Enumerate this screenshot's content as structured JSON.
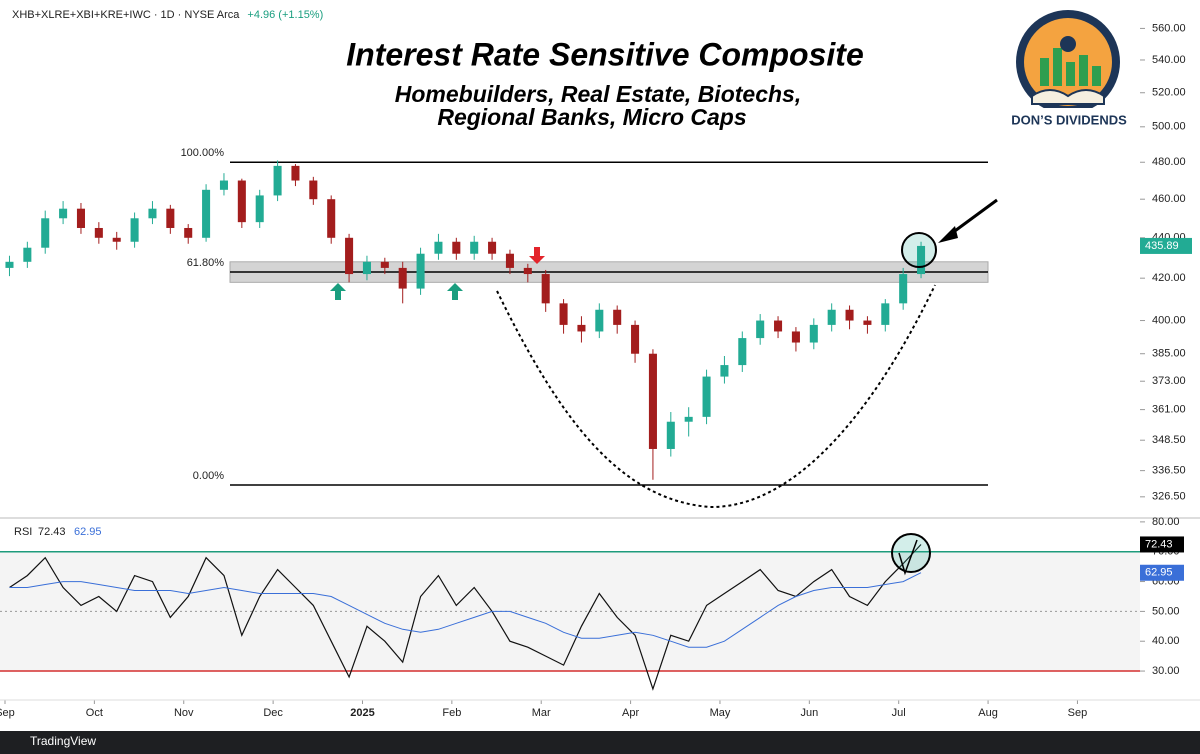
{
  "chart_data": [
    {
      "type": "candlestick",
      "symbol": "XHB+XLRE+XBI+KRE+IWC · 1D · NYSE Arca",
      "change": "+4.96 (+1.15%)",
      "title": "Interest Rate Sensitive Composite",
      "subtitle": [
        "Homebuilders, Real Estate, Biotechs,",
        "Regional Banks, Micro Caps"
      ],
      "logo": "DON’S DIVIDENDS",
      "x": [
        0.05,
        0.25,
        0.45,
        0.65,
        0.85,
        1.05,
        1.25,
        1.45,
        1.65,
        1.85,
        2.05,
        2.25,
        2.45,
        2.65,
        2.85,
        3.05,
        3.25,
        3.45,
        3.65,
        3.85,
        4.05,
        4.25,
        4.45,
        4.65,
        4.85,
        5.05,
        5.25,
        5.45,
        5.65,
        5.85,
        6.05,
        6.25,
        6.45,
        6.65,
        6.85,
        7.05,
        7.25,
        7.45,
        7.65,
        7.85,
        8.05,
        8.25,
        8.45,
        8.65,
        8.85,
        9.05,
        9.25,
        9.45,
        9.65,
        9.85,
        10.05,
        10.25
      ],
      "open": [
        425,
        428,
        435,
        450,
        455,
        445,
        440,
        438,
        450,
        455,
        445,
        440,
        465,
        470,
        448,
        462,
        478,
        470,
        460,
        440,
        422,
        428,
        425,
        415,
        432,
        438,
        432,
        438,
        432,
        425,
        422,
        408,
        398,
        395,
        405,
        398,
        385,
        345,
        356,
        358,
        375,
        380,
        392,
        400,
        395,
        390,
        398,
        405,
        400,
        398,
        408,
        422
      ],
      "high": [
        431,
        438,
        454,
        459,
        458,
        448,
        443,
        453,
        459,
        457,
        447,
        468,
        474,
        471,
        465,
        481,
        479,
        472,
        462,
        442,
        431,
        430,
        428,
        435,
        442,
        440,
        441,
        440,
        434,
        427,
        424,
        410,
        402,
        408,
        407,
        400,
        387,
        360,
        362,
        378,
        384,
        395,
        403,
        402,
        397,
        401,
        408,
        407,
        402,
        410,
        425,
        438
      ],
      "low": [
        421,
        425,
        432,
        447,
        442,
        437,
        434,
        435,
        447,
        442,
        437,
        438,
        462,
        445,
        445,
        459,
        467,
        457,
        437,
        418,
        419,
        422,
        408,
        412,
        429,
        429,
        429,
        429,
        422,
        418,
        404,
        394,
        390,
        392,
        394,
        381,
        333,
        342,
        350,
        355,
        372,
        377,
        389,
        392,
        386,
        387,
        395,
        396,
        394,
        395,
        405,
        420
      ],
      "close": [
        428,
        435,
        450,
        455,
        445,
        440,
        438,
        450,
        455,
        445,
        440,
        465,
        470,
        448,
        462,
        478,
        470,
        460,
        440,
        422,
        428,
        425,
        415,
        432,
        438,
        432,
        438,
        432,
        425,
        422,
        408,
        398,
        395,
        405,
        398,
        385,
        345,
        356,
        358,
        375,
        380,
        392,
        400,
        395,
        390,
        398,
        405,
        400,
        398,
        408,
        422,
        435.89
      ],
      "up_color": "#22ab94",
      "down_color": "#a31d1d",
      "log_scale": true,
      "xlim": [
        -0.056,
        12.7
      ],
      "ylim": [
        319,
        572
      ],
      "yticks": [
        {
          "value": 326.5,
          "label": "326.50"
        },
        {
          "value": 336.5,
          "label": "336.50"
        },
        {
          "value": 348.5,
          "label": "348.50"
        },
        {
          "value": 361,
          "label": "361.00"
        },
        {
          "value": 373,
          "label": "373.00"
        },
        {
          "value": 385,
          "label": "385.00"
        },
        {
          "value": 400,
          "label": "400.00"
        },
        {
          "value": 420,
          "label": "420.00"
        },
        {
          "value": 440,
          "label": "440.00"
        },
        {
          "value": 460,
          "label": "460.00"
        },
        {
          "value": 480,
          "label": "480.00"
        },
        {
          "value": 500,
          "label": "500.00"
        },
        {
          "value": 520,
          "label": "520.00"
        },
        {
          "value": 540,
          "label": "540.00"
        },
        {
          "value": 560,
          "label": "560.00"
        }
      ],
      "fib_levels": [
        {
          "value": 480,
          "label": "100.00%"
        },
        {
          "value": 423,
          "label": "61.80%"
        },
        {
          "value": 331,
          "label": "0.00%"
        }
      ],
      "zone": [
        418,
        428
      ]
    },
    {
      "type": "line",
      "x": [
        0.05,
        0.25,
        0.45,
        0.65,
        0.85,
        1.05,
        1.25,
        1.45,
        1.65,
        1.85,
        2.05,
        2.25,
        2.45,
        2.65,
        2.85,
        3.05,
        3.25,
        3.45,
        3.65,
        3.85,
        4.05,
        4.25,
        4.45,
        4.65,
        4.85,
        5.05,
        5.25,
        5.45,
        5.65,
        5.85,
        6.05,
        6.25,
        6.45,
        6.65,
        6.85,
        7.05,
        7.25,
        7.45,
        7.65,
        7.85,
        8.05,
        8.25,
        8.45,
        8.65,
        8.85,
        9.05,
        9.25,
        9.45,
        9.65,
        9.85,
        10.05,
        10.25
      ],
      "series": [
        {
          "name": "RSI",
          "color": "#111111",
          "values": [
            58,
            62,
            68,
            58,
            52,
            55,
            50,
            62,
            60,
            48,
            55,
            68,
            62,
            42,
            55,
            64,
            58,
            52,
            40,
            28,
            45,
            40,
            33,
            55,
            62,
            52,
            58,
            50,
            40,
            38,
            35,
            32,
            45,
            56,
            48,
            42,
            24,
            42,
            40,
            52,
            56,
            60,
            64,
            57,
            55,
            60,
            64,
            55,
            52,
            60,
            66,
            72.43
          ]
        },
        {
          "color": "#3a6fd8",
          "values": [
            58,
            58,
            59,
            60,
            60,
            59,
            58,
            57,
            57,
            57,
            56,
            57,
            58,
            57,
            56,
            56,
            56,
            56,
            55,
            52,
            49,
            46,
            44,
            43,
            44,
            46,
            48,
            50,
            50,
            48,
            46,
            43,
            41,
            41,
            42,
            43,
            42,
            40,
            38,
            38,
            40,
            44,
            48,
            52,
            55,
            57,
            58,
            58,
            58,
            59,
            60,
            62.95
          ]
        }
      ],
      "upper": 70,
      "middle": 50,
      "lower": 30,
      "upper_color": "#1e9b7c",
      "lower_color": "#d32f2f",
      "xlim": [
        -0.056,
        12.7
      ],
      "ylim": [
        20.3,
        81.3
      ],
      "yticks": [
        {
          "value": 30,
          "label": "30.00"
        },
        {
          "value": 40,
          "label": "40.00"
        },
        {
          "value": 50,
          "label": "50.00"
        },
        {
          "value": 60,
          "label": "60.00"
        },
        {
          "value": 70,
          "label": "70.00"
        },
        {
          "value": 80,
          "label": "80.00"
        }
      ],
      "xticks": [
        {
          "value": 0,
          "label": "Sep"
        },
        {
          "value": 1,
          "label": "Oct"
        },
        {
          "value": 2,
          "label": "Nov"
        },
        {
          "value": 3,
          "label": "Dec"
        },
        {
          "value": 4,
          "label": "2025"
        },
        {
          "value": 5,
          "label": "Feb"
        },
        {
          "value": 6,
          "label": "Mar"
        },
        {
          "value": 7,
          "label": "Apr"
        },
        {
          "value": 8,
          "label": "May"
        },
        {
          "value": 9,
          "label": "Jun"
        },
        {
          "value": 10,
          "label": "Jul"
        },
        {
          "value": 11,
          "label": "Aug"
        },
        {
          "value": 12,
          "label": "Sep"
        }
      ]
    }
  ],
  "footer": "TradingView"
}
